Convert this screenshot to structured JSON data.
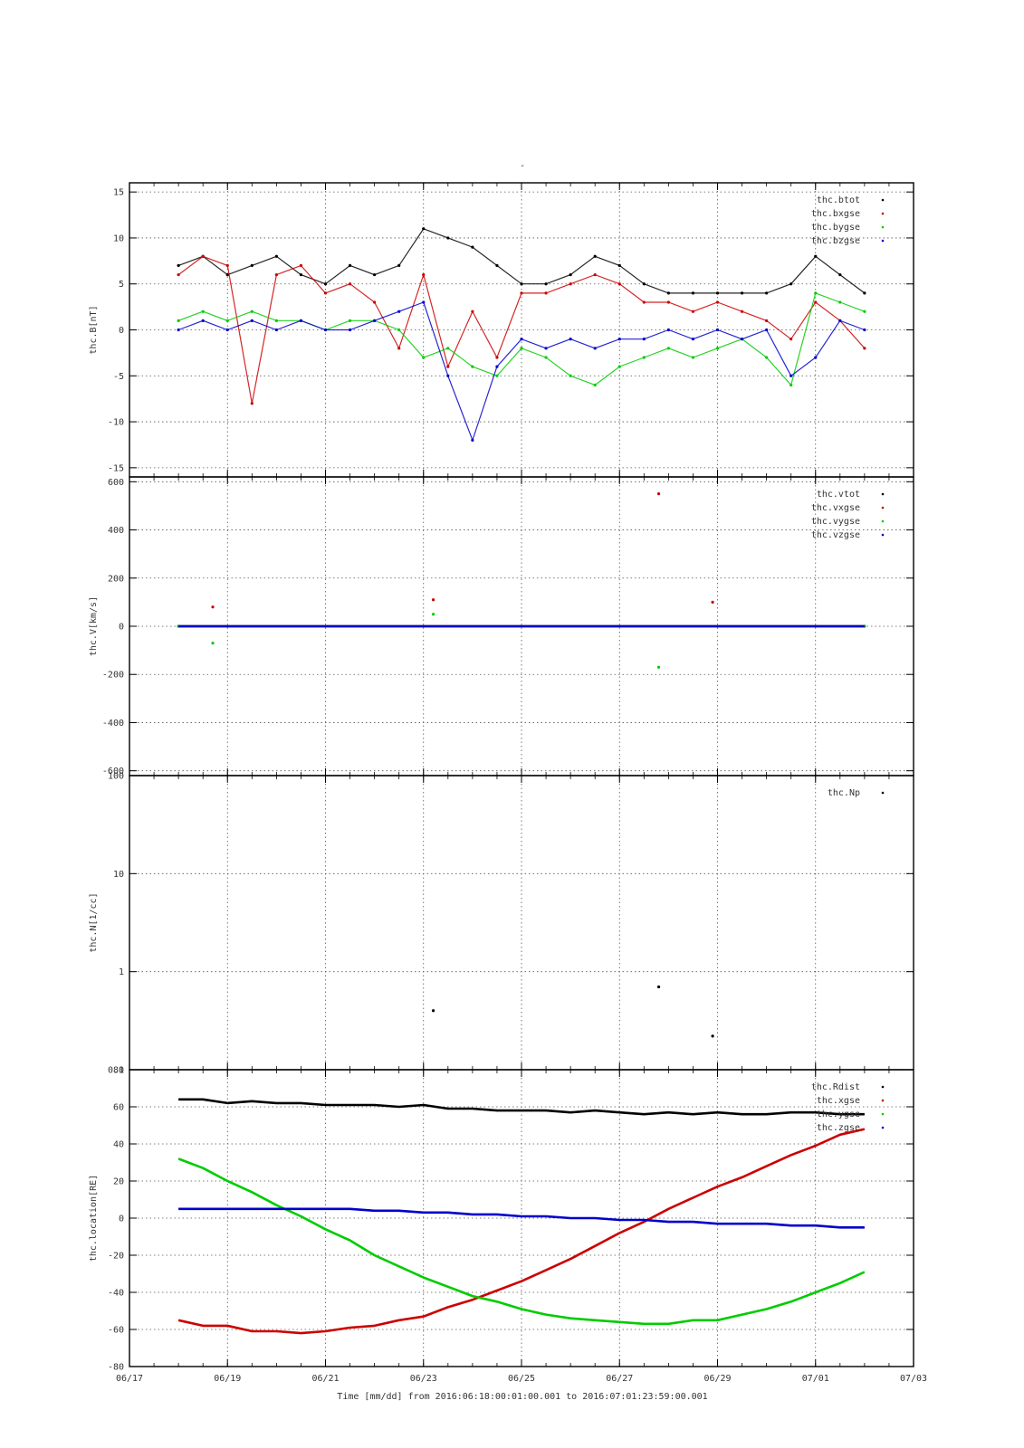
{
  "figure": {
    "title": "-",
    "xlabel": "Time [mm/dd]  from 2016:06:18:00:01:00.001  to  2016:07:01:23:59:00.001"
  },
  "colors": {
    "black": "#000000",
    "red": "#cc0000",
    "green": "#00cc00",
    "blue": "#0000cc",
    "grid": "#555555"
  },
  "chart_data": [
    {
      "type": "scatter",
      "name": "panel-b",
      "ylabel": "thc.B[nT]",
      "ylim": [
        -16,
        16
      ],
      "yscale": "linear",
      "yticks": [
        -15,
        -10,
        -5,
        0,
        5,
        10,
        15
      ],
      "x_axis": {
        "type": "date",
        "range": [
          "06/17",
          "07/03"
        ],
        "ticks": [
          "06/17",
          "06/19",
          "06/21",
          "06/23",
          "06/25",
          "06/27",
          "06/29",
          "07/01",
          "07/03"
        ]
      },
      "grid": true,
      "legend_position": "top-right",
      "series": [
        {
          "name": "thc.btot",
          "color": "#000000",
          "x": [
            "06/18",
            "06/18.5",
            "06/19",
            "06/19.5",
            "06/20",
            "06/20.5",
            "06/21",
            "06/21.5",
            "06/22",
            "06/22.5",
            "06/23",
            "06/23.5",
            "06/24",
            "06/24.5",
            "06/25",
            "06/25.5",
            "06/26",
            "06/26.5",
            "06/27",
            "06/27.5",
            "06/28",
            "06/28.5",
            "06/29",
            "06/29.5",
            "06/30",
            "06/30.5",
            "07/01",
            "07/01.5",
            "07/02"
          ],
          "y": [
            7,
            8,
            6,
            7,
            8,
            6,
            5,
            7,
            6,
            7,
            11,
            10,
            9,
            7,
            5,
            5,
            6,
            8,
            7,
            5,
            4,
            4,
            4,
            4,
            4,
            5,
            8,
            6,
            4
          ]
        },
        {
          "name": "thc.bxgse",
          "color": "#cc0000",
          "x": [
            "06/18",
            "06/18.5",
            "06/19",
            "06/19.5",
            "06/20",
            "06/20.5",
            "06/21",
            "06/21.5",
            "06/22",
            "06/22.5",
            "06/23",
            "06/23.5",
            "06/24",
            "06/24.5",
            "06/25",
            "06/25.5",
            "06/26",
            "06/26.5",
            "06/27",
            "06/27.5",
            "06/28",
            "06/28.5",
            "06/29",
            "06/29.5",
            "06/30",
            "06/30.5",
            "07/01",
            "07/01.5",
            "07/02"
          ],
          "y": [
            6,
            8,
            7,
            -8,
            6,
            7,
            4,
            5,
            3,
            -2,
            6,
            -4,
            2,
            -3,
            4,
            4,
            5,
            6,
            5,
            3,
            3,
            2,
            3,
            2,
            1,
            -1,
            3,
            1,
            -2
          ]
        },
        {
          "name": "thc.bygse",
          "color": "#00cc00",
          "x": [
            "06/18",
            "06/18.5",
            "06/19",
            "06/19.5",
            "06/20",
            "06/20.5",
            "06/21",
            "06/21.5",
            "06/22",
            "06/22.5",
            "06/23",
            "06/23.5",
            "06/24",
            "06/24.5",
            "06/25",
            "06/25.5",
            "06/26",
            "06/26.5",
            "06/27",
            "06/27.5",
            "06/28",
            "06/28.5",
            "06/29",
            "06/29.5",
            "06/30",
            "06/30.5",
            "07/01",
            "07/01.5",
            "07/02"
          ],
          "y": [
            1,
            2,
            1,
            2,
            1,
            1,
            0,
            1,
            1,
            0,
            -3,
            -2,
            -4,
            -5,
            -2,
            -3,
            -5,
            -6,
            -4,
            -3,
            -2,
            -3,
            -2,
            -1,
            -3,
            -6,
            4,
            3,
            2
          ]
        },
        {
          "name": "thc.bzgse",
          "color": "#0000cc",
          "x": [
            "06/18",
            "06/18.5",
            "06/19",
            "06/19.5",
            "06/20",
            "06/20.5",
            "06/21",
            "06/21.5",
            "06/22",
            "06/22.5",
            "06/23",
            "06/23.5",
            "06/24",
            "06/24.5",
            "06/25",
            "06/25.5",
            "06/26",
            "06/26.5",
            "06/27",
            "06/27.5",
            "06/28",
            "06/28.5",
            "06/29",
            "06/29.5",
            "06/30",
            "06/30.5",
            "07/01",
            "07/01.5",
            "07/02"
          ],
          "y": [
            0,
            1,
            0,
            1,
            0,
            1,
            0,
            0,
            1,
            2,
            3,
            -5,
            -12,
            -4,
            -1,
            -2,
            -1,
            -2,
            -1,
            -1,
            0,
            -1,
            0,
            -1,
            0,
            -5,
            -3,
            1,
            0
          ]
        }
      ]
    },
    {
      "type": "scatter",
      "name": "panel-v",
      "ylabel": "thc.V[km/s]",
      "ylim": [
        -620,
        620
      ],
      "yscale": "linear",
      "yticks": [
        -600,
        -400,
        -200,
        0,
        200,
        400,
        600
      ],
      "x_axis": {
        "type": "date",
        "range": [
          "06/17",
          "07/03"
        ],
        "ticks": [
          "06/17",
          "06/19",
          "06/21",
          "06/23",
          "06/25",
          "06/27",
          "06/29",
          "07/01",
          "07/03"
        ]
      },
      "grid": true,
      "legend_position": "top-right",
      "series": [
        {
          "name": "thc.vtot",
          "color": "#000000",
          "x": [
            "06/18",
            "07/02"
          ],
          "y": [
            0,
            0
          ]
        },
        {
          "name": "thc.vxgse",
          "color": "#cc0000",
          "x": [
            "06/18",
            "06/18.7",
            "06/23.2",
            "06/27.8",
            "06/28.9",
            "07/02"
          ],
          "y": [
            0,
            80,
            110,
            550,
            100,
            0
          ]
        },
        {
          "name": "thc.vygse",
          "color": "#00cc00",
          "x": [
            "06/18",
            "06/18.7",
            "06/23.2",
            "06/27.8",
            "07/02"
          ],
          "y": [
            0,
            -70,
            50,
            -170,
            0
          ]
        },
        {
          "name": "thc.vzgse",
          "color": "#0000cc",
          "x": [
            "06/18",
            "07/02"
          ],
          "y": [
            0,
            0
          ]
        }
      ]
    },
    {
      "type": "scatter",
      "name": "panel-n",
      "ylabel": "thc.N[1/cc]",
      "ylim": [
        0.1,
        100
      ],
      "yscale": "log",
      "yticks": [
        0.1,
        1,
        10,
        100
      ],
      "x_axis": {
        "type": "date",
        "range": [
          "06/17",
          "07/03"
        ],
        "ticks": [
          "06/17",
          "06/19",
          "06/21",
          "06/23",
          "06/25",
          "06/27",
          "06/29",
          "07/01",
          "07/03"
        ]
      },
      "grid": true,
      "legend_position": "top-right",
      "series": [
        {
          "name": "thc.Np",
          "color": "#000000",
          "x": [
            "06/23.2",
            "06/27.8",
            "06/28.9"
          ],
          "y": [
            0.4,
            0.7,
            0.22
          ]
        }
      ]
    },
    {
      "type": "line",
      "name": "panel-loc",
      "ylabel": "thc.location[RE]",
      "ylim": [
        -80,
        80
      ],
      "yscale": "linear",
      "yticks": [
        -80,
        -60,
        -40,
        -20,
        0,
        20,
        40,
        60,
        80
      ],
      "x_axis": {
        "type": "date",
        "range": [
          "06/17",
          "07/03"
        ],
        "ticks": [
          "06/17",
          "06/19",
          "06/21",
          "06/23",
          "06/25",
          "06/27",
          "06/29",
          "07/01",
          "07/03"
        ]
      },
      "grid": true,
      "legend_position": "top-right",
      "series": [
        {
          "name": "thc.Rdist",
          "color": "#000000",
          "x": [
            "06/18",
            "06/18.5",
            "06/19",
            "06/19.5",
            "06/20",
            "06/20.5",
            "06/21",
            "06/21.5",
            "06/22",
            "06/22.5",
            "06/23",
            "06/23.5",
            "06/24",
            "06/24.5",
            "06/25",
            "06/25.5",
            "06/26",
            "06/26.5",
            "06/27",
            "06/27.5",
            "06/28",
            "06/28.5",
            "06/29",
            "06/29.5",
            "06/30",
            "06/30.5",
            "07/01",
            "07/01.5",
            "07/02"
          ],
          "y": [
            64,
            64,
            62,
            63,
            62,
            62,
            61,
            61,
            61,
            60,
            61,
            59,
            59,
            58,
            58,
            58,
            57,
            58,
            57,
            56,
            57,
            56,
            57,
            56,
            56,
            57,
            57,
            56,
            56
          ]
        },
        {
          "name": "thc.xgse",
          "color": "#cc0000",
          "x": [
            "06/18",
            "06/18.5",
            "06/19",
            "06/19.5",
            "06/20",
            "06/20.5",
            "06/21",
            "06/21.5",
            "06/22",
            "06/22.5",
            "06/23",
            "06/23.5",
            "06/24",
            "06/24.5",
            "06/25",
            "06/25.5",
            "06/26",
            "06/26.5",
            "06/27",
            "06/27.5",
            "06/28",
            "06/28.5",
            "06/29",
            "06/29.5",
            "06/30",
            "06/30.5",
            "07/01",
            "07/01.5",
            "07/02"
          ],
          "y": [
            -55,
            -58,
            -58,
            -61,
            -61,
            -62,
            -61,
            -59,
            -58,
            -55,
            -53,
            -48,
            -44,
            -39,
            -34,
            -28,
            -22,
            -15,
            -8,
            -2,
            5,
            11,
            17,
            22,
            28,
            34,
            39,
            45,
            48
          ]
        },
        {
          "name": "thc.ygse",
          "color": "#00cc00",
          "x": [
            "06/18",
            "06/18.5",
            "06/19",
            "06/19.5",
            "06/20",
            "06/20.5",
            "06/21",
            "06/21.5",
            "06/22",
            "06/22.5",
            "06/23",
            "06/23.5",
            "06/24",
            "06/24.5",
            "06/25",
            "06/25.5",
            "06/26",
            "06/26.5",
            "06/27",
            "06/27.5",
            "06/28",
            "06/28.5",
            "06/29",
            "06/29.5",
            "06/30",
            "06/30.5",
            "07/01",
            "07/01.5",
            "07/02"
          ],
          "y": [
            32,
            27,
            20,
            14,
            7,
            1,
            -6,
            -12,
            -20,
            -26,
            -32,
            -37,
            -42,
            -45,
            -49,
            -52,
            -54,
            -55,
            -56,
            -57,
            -57,
            -55,
            -55,
            -52,
            -49,
            -45,
            -40,
            -35,
            -29
          ]
        },
        {
          "name": "thc.zgse",
          "color": "#0000cc",
          "x": [
            "06/18",
            "06/18.5",
            "06/19",
            "06/19.5",
            "06/20",
            "06/20.5",
            "06/21",
            "06/21.5",
            "06/22",
            "06/22.5",
            "06/23",
            "06/23.5",
            "06/24",
            "06/24.5",
            "06/25",
            "06/25.5",
            "06/26",
            "06/26.5",
            "06/27",
            "06/27.5",
            "06/28",
            "06/28.5",
            "06/29",
            "06/29.5",
            "06/30",
            "06/30.5",
            "07/01",
            "07/01.5",
            "07/02"
          ],
          "y": [
            5,
            5,
            5,
            5,
            5,
            5,
            5,
            5,
            4,
            4,
            3,
            3,
            2,
            2,
            1,
            1,
            0,
            0,
            -1,
            -1,
            -2,
            -2,
            -3,
            -3,
            -3,
            -4,
            -4,
            -5,
            -5
          ]
        }
      ]
    }
  ]
}
